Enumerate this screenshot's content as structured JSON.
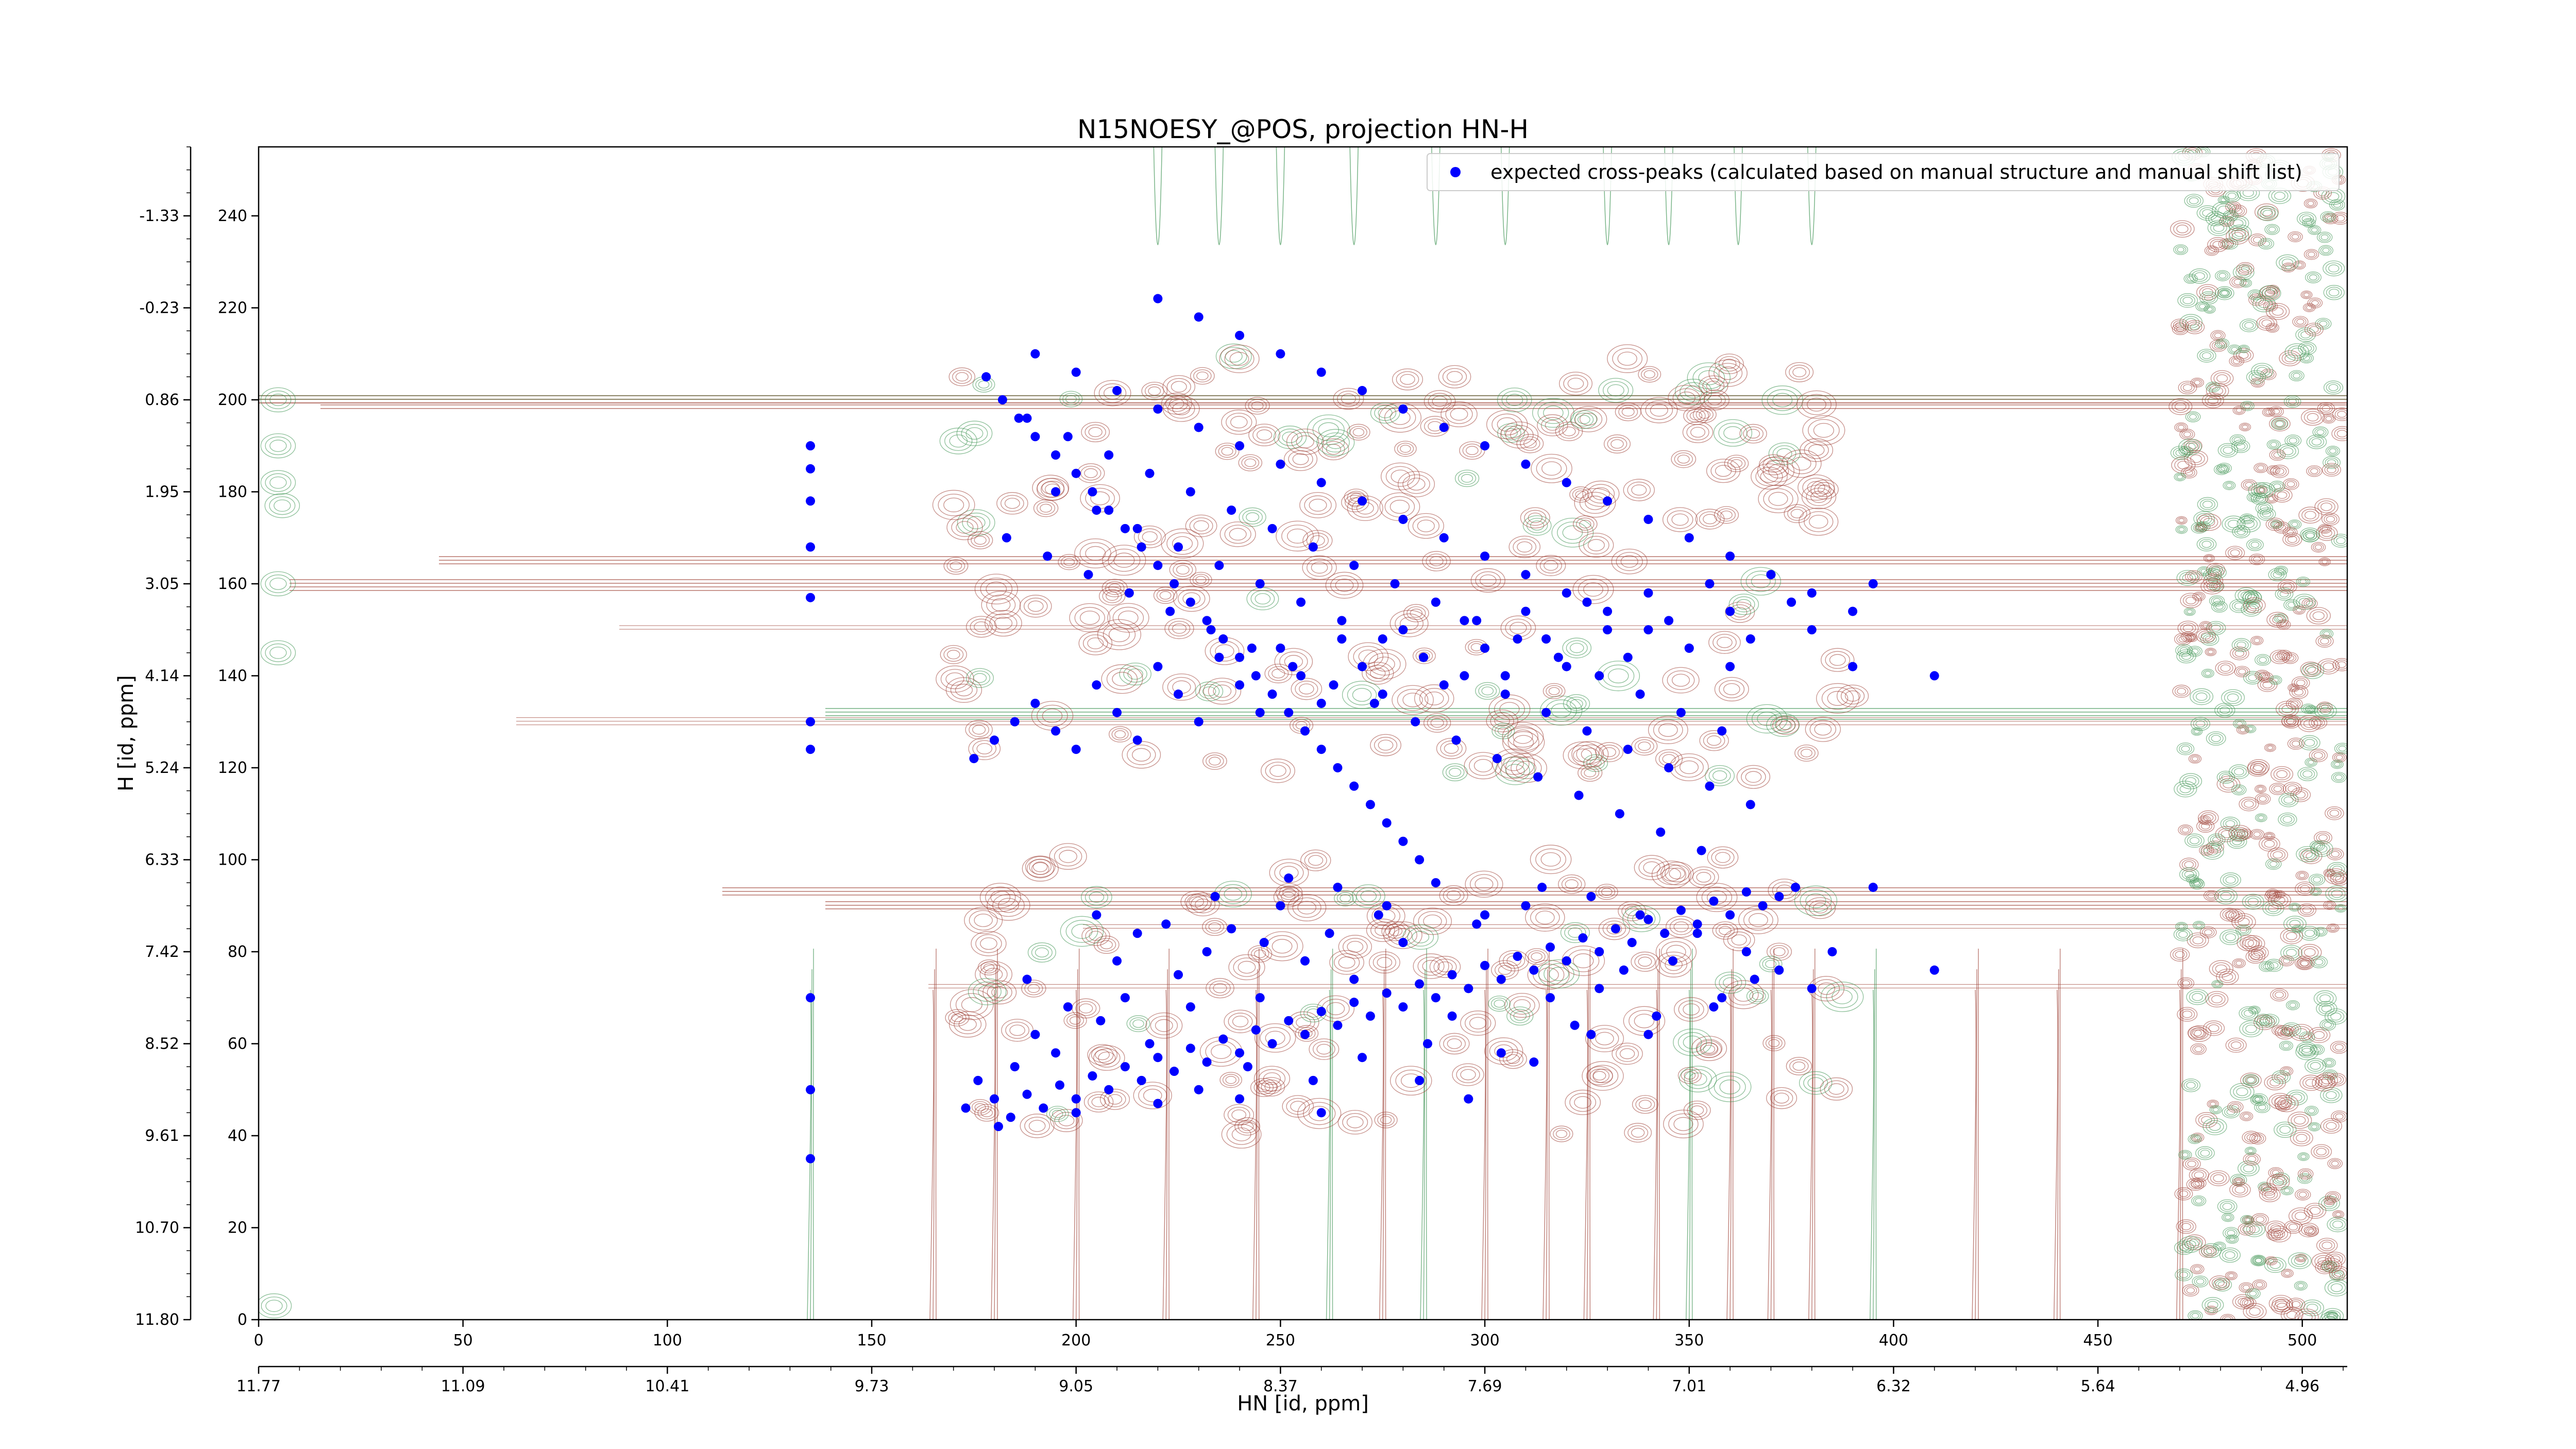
{
  "chart_data": {
    "type": "scatter",
    "title": "N15NOESY_@POS, projection HN-H",
    "xlabel": "HN [id, ppm]",
    "ylabel": "H [id, ppm]",
    "xlim": [
      0,
      511
    ],
    "ylim": [
      0,
      255
    ],
    "x_ticks": [
      0,
      50,
      100,
      150,
      200,
      250,
      300,
      350,
      400,
      450,
      500
    ],
    "y_ticks": [
      0,
      20,
      40,
      60,
      80,
      100,
      120,
      140,
      160,
      180,
      200,
      220,
      240
    ],
    "x_ppm_ticks": [
      {
        "pos": 0,
        "label": "11.77"
      },
      {
        "pos": 50,
        "label": "11.09"
      },
      {
        "pos": 100,
        "label": "10.41"
      },
      {
        "pos": 150,
        "label": "9.73"
      },
      {
        "pos": 200,
        "label": "9.05"
      },
      {
        "pos": 250,
        "label": "8.37"
      },
      {
        "pos": 300,
        "label": "7.69"
      },
      {
        "pos": 350,
        "label": "7.01"
      },
      {
        "pos": 400,
        "label": "6.32"
      },
      {
        "pos": 450,
        "label": "5.64"
      },
      {
        "pos": 500,
        "label": "4.96"
      }
    ],
    "y_ppm_ticks": [
      {
        "pos": 0,
        "label": "11.80"
      },
      {
        "pos": 20,
        "label": "10.70"
      },
      {
        "pos": 40,
        "label": "9.61"
      },
      {
        "pos": 60,
        "label": "8.52"
      },
      {
        "pos": 80,
        "label": "7.42"
      },
      {
        "pos": 100,
        "label": "6.33"
      },
      {
        "pos": 120,
        "label": "5.24"
      },
      {
        "pos": 140,
        "label": "4.14"
      },
      {
        "pos": 160,
        "label": "3.05"
      },
      {
        "pos": 180,
        "label": "1.95"
      },
      {
        "pos": 200,
        "label": "0.86"
      },
      {
        "pos": 220,
        "label": "-0.23"
      },
      {
        "pos": 240,
        "label": "-1.33"
      }
    ],
    "legend": {
      "placement": "top-right",
      "entry": "expected cross-peaks (calculated based on manual structure and manual shift list)"
    },
    "colors": {
      "points": "#0000ff",
      "positive_contour": "#a0453a",
      "negative_contour": "#3f9454"
    },
    "series": [
      {
        "name": "expected cross-peaks (calculated based on manual structure and manual shift list)",
        "points": [
          [
            135,
            190
          ],
          [
            135,
            185
          ],
          [
            135,
            178
          ],
          [
            135,
            168
          ],
          [
            135,
            157
          ],
          [
            135,
            130
          ],
          [
            135,
            124
          ],
          [
            135,
            50
          ],
          [
            135,
            35
          ],
          [
            135,
            70
          ],
          [
            173,
            46
          ],
          [
            176,
            52
          ],
          [
            180,
            48
          ],
          [
            184,
            44
          ],
          [
            188,
            49
          ],
          [
            192,
            46
          ],
          [
            196,
            51
          ],
          [
            200,
            48
          ],
          [
            204,
            53
          ],
          [
            208,
            50
          ],
          [
            212,
            55
          ],
          [
            216,
            52
          ],
          [
            220,
            57
          ],
          [
            224,
            54
          ],
          [
            228,
            59
          ],
          [
            232,
            56
          ],
          [
            236,
            61
          ],
          [
            240,
            58
          ],
          [
            244,
            63
          ],
          [
            248,
            60
          ],
          [
            252,
            65
          ],
          [
            256,
            62
          ],
          [
            260,
            67
          ],
          [
            264,
            64
          ],
          [
            268,
            69
          ],
          [
            272,
            66
          ],
          [
            276,
            71
          ],
          [
            280,
            68
          ],
          [
            284,
            73
          ],
          [
            288,
            70
          ],
          [
            292,
            75
          ],
          [
            296,
            72
          ],
          [
            300,
            77
          ],
          [
            304,
            74
          ],
          [
            308,
            79
          ],
          [
            312,
            76
          ],
          [
            316,
            81
          ],
          [
            320,
            78
          ],
          [
            324,
            83
          ],
          [
            328,
            80
          ],
          [
            332,
            85
          ],
          [
            336,
            82
          ],
          [
            340,
            87
          ],
          [
            344,
            84
          ],
          [
            348,
            89
          ],
          [
            352,
            86
          ],
          [
            356,
            91
          ],
          [
            360,
            88
          ],
          [
            364,
            93
          ],
          [
            368,
            90
          ],
          [
            372,
            92
          ],
          [
            376,
            94
          ],
          [
            181,
            42
          ],
          [
            185,
            55
          ],
          [
            190,
            62
          ],
          [
            195,
            58
          ],
          [
            200,
            45
          ],
          [
            206,
            65
          ],
          [
            212,
            70
          ],
          [
            218,
            60
          ],
          [
            225,
            75
          ],
          [
            232,
            80
          ],
          [
            238,
            85
          ],
          [
            245,
            70
          ],
          [
            250,
            90
          ],
          [
            256,
            78
          ],
          [
            262,
            84
          ],
          [
            268,
            74
          ],
          [
            274,
            88
          ],
          [
            280,
            82
          ],
          [
            286,
            60
          ],
          [
            292,
            66
          ],
          [
            298,
            86
          ],
          [
            304,
            58
          ],
          [
            310,
            90
          ],
          [
            316,
            70
          ],
          [
            322,
            64
          ],
          [
            328,
            72
          ],
          [
            334,
            76
          ],
          [
            340,
            62
          ],
          [
            346,
            78
          ],
          [
            352,
            84
          ],
          [
            358,
            70
          ],
          [
            364,
            80
          ],
          [
            205,
            88
          ],
          [
            215,
            84
          ],
          [
            228,
            68
          ],
          [
            242,
            55
          ],
          [
            258,
            52
          ],
          [
            270,
            57
          ],
          [
            284,
            52
          ],
          [
            296,
            48
          ],
          [
            312,
            56
          ],
          [
            326,
            62
          ],
          [
            342,
            66
          ],
          [
            356,
            68
          ],
          [
            372,
            76
          ],
          [
            385,
            80
          ],
          [
            395,
            94
          ],
          [
            410,
            76
          ],
          [
            380,
            72
          ],
          [
            366,
            74
          ],
          [
            252,
            96
          ],
          [
            264,
            94
          ],
          [
            276,
            90
          ],
          [
            288,
            95
          ],
          [
            300,
            88
          ],
          [
            314,
            94
          ],
          [
            326,
            92
          ],
          [
            338,
            88
          ],
          [
            188,
            74
          ],
          [
            198,
            68
          ],
          [
            210,
            78
          ],
          [
            222,
            86
          ],
          [
            234,
            92
          ],
          [
            246,
            82
          ],
          [
            230,
            50
          ],
          [
            220,
            47
          ],
          [
            240,
            48
          ],
          [
            260,
            45
          ],
          [
            175,
            122
          ],
          [
            180,
            126
          ],
          [
            185,
            130
          ],
          [
            190,
            134
          ],
          [
            195,
            128
          ],
          [
            200,
            124
          ],
          [
            205,
            138
          ],
          [
            210,
            132
          ],
          [
            215,
            126
          ],
          [
            220,
            142
          ],
          [
            225,
            136
          ],
          [
            230,
            130
          ],
          [
            235,
            144
          ],
          [
            240,
            138
          ],
          [
            245,
            132
          ],
          [
            250,
            146
          ],
          [
            255,
            140
          ],
          [
            260,
            134
          ],
          [
            265,
            148
          ],
          [
            270,
            142
          ],
          [
            275,
            136
          ],
          [
            280,
            150
          ],
          [
            285,
            144
          ],
          [
            290,
            138
          ],
          [
            295,
            152
          ],
          [
            300,
            146
          ],
          [
            305,
            140
          ],
          [
            310,
            154
          ],
          [
            315,
            148
          ],
          [
            320,
            142
          ],
          [
            325,
            156
          ],
          [
            330,
            150
          ],
          [
            335,
            144
          ],
          [
            340,
            158
          ],
          [
            345,
            152
          ],
          [
            350,
            146
          ],
          [
            355,
            160
          ],
          [
            360,
            154
          ],
          [
            365,
            148
          ],
          [
            370,
            162
          ],
          [
            375,
            156
          ],
          [
            380,
            150
          ],
          [
            390,
            142
          ],
          [
            395,
            160
          ],
          [
            410,
            140
          ],
          [
            178,
            205
          ],
          [
            182,
            200
          ],
          [
            186,
            196
          ],
          [
            190,
            192
          ],
          [
            195,
            188
          ],
          [
            200,
            184
          ],
          [
            204,
            180
          ],
          [
            208,
            176
          ],
          [
            212,
            172
          ],
          [
            216,
            168
          ],
          [
            220,
            164
          ],
          [
            224,
            160
          ],
          [
            228,
            156
          ],
          [
            232,
            152
          ],
          [
            236,
            148
          ],
          [
            240,
            144
          ],
          [
            244,
            140
          ],
          [
            248,
            136
          ],
          [
            252,
            132
          ],
          [
            256,
            128
          ],
          [
            260,
            124
          ],
          [
            264,
            120
          ],
          [
            268,
            116
          ],
          [
            272,
            112
          ],
          [
            276,
            108
          ],
          [
            280,
            104
          ],
          [
            284,
            100
          ],
          [
            190,
            210
          ],
          [
            200,
            206
          ],
          [
            210,
            202
          ],
          [
            220,
            198
          ],
          [
            230,
            194
          ],
          [
            240,
            190
          ],
          [
            250,
            186
          ],
          [
            260,
            182
          ],
          [
            270,
            178
          ],
          [
            280,
            174
          ],
          [
            290,
            170
          ],
          [
            300,
            166
          ],
          [
            310,
            162
          ],
          [
            320,
            158
          ],
          [
            330,
            154
          ],
          [
            340,
            150
          ],
          [
            350,
            146
          ],
          [
            360,
            142
          ],
          [
            195,
            180
          ],
          [
            205,
            176
          ],
          [
            215,
            172
          ],
          [
            225,
            168
          ],
          [
            235,
            164
          ],
          [
            245,
            160
          ],
          [
            255,
            156
          ],
          [
            265,
            152
          ],
          [
            275,
            148
          ],
          [
            285,
            144
          ],
          [
            295,
            140
          ],
          [
            305,
            136
          ],
          [
            315,
            132
          ],
          [
            325,
            128
          ],
          [
            335,
            124
          ],
          [
            345,
            120
          ],
          [
            355,
            116
          ],
          [
            365,
            112
          ],
          [
            220,
            222
          ],
          [
            230,
            218
          ],
          [
            240,
            214
          ],
          [
            250,
            210
          ],
          [
            260,
            206
          ],
          [
            270,
            202
          ],
          [
            280,
            198
          ],
          [
            290,
            194
          ],
          [
            300,
            190
          ],
          [
            310,
            186
          ],
          [
            320,
            182
          ],
          [
            330,
            178
          ],
          [
            340,
            174
          ],
          [
            350,
            170
          ],
          [
            360,
            166
          ],
          [
            370,
            162
          ],
          [
            380,
            158
          ],
          [
            390,
            154
          ],
          [
            188,
            196
          ],
          [
            198,
            192
          ],
          [
            208,
            188
          ],
          [
            218,
            184
          ],
          [
            228,
            180
          ],
          [
            238,
            176
          ],
          [
            248,
            172
          ],
          [
            258,
            168
          ],
          [
            268,
            164
          ],
          [
            278,
            160
          ],
          [
            288,
            156
          ],
          [
            298,
            152
          ],
          [
            308,
            148
          ],
          [
            318,
            144
          ],
          [
            328,
            140
          ],
          [
            338,
            136
          ],
          [
            348,
            132
          ],
          [
            358,
            128
          ],
          [
            183,
            170
          ],
          [
            193,
            166
          ],
          [
            203,
            162
          ],
          [
            213,
            158
          ],
          [
            223,
            154
          ],
          [
            233,
            150
          ],
          [
            243,
            146
          ],
          [
            253,
            142
          ],
          [
            263,
            138
          ],
          [
            273,
            134
          ],
          [
            283,
            130
          ],
          [
            293,
            126
          ],
          [
            303,
            122
          ],
          [
            313,
            118
          ],
          [
            323,
            114
          ],
          [
            333,
            110
          ],
          [
            343,
            106
          ],
          [
            353,
            102
          ]
        ]
      }
    ]
  }
}
